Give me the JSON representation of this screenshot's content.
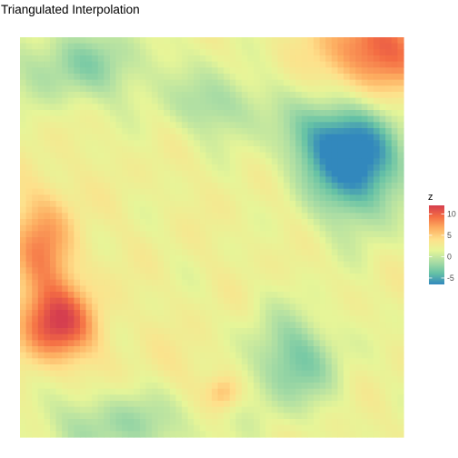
{
  "chart_data": {
    "type": "heatmap",
    "title": "Triangulated Interpolation",
    "xlabel": "",
    "ylabel": "",
    "grid": false,
    "legend": {
      "title": "z",
      "placement": "right",
      "ticks": [
        10,
        5,
        0,
        -5
      ],
      "tick_labels": [
        "10",
        "5",
        "0",
        "-5"
      ],
      "range": [
        -6.5,
        12
      ],
      "colormap": [
        "#3288bd",
        "#66c2a5",
        "#abdda4",
        "#e6f598",
        "#fee08b",
        "#fdae61",
        "#f46d43",
        "#d53e4f"
      ]
    },
    "z_range": [
      -6.5,
      12
    ],
    "features": [
      {
        "name": "low-east",
        "x": 0.88,
        "y": 0.33,
        "z": -6.0,
        "sx": 0.085,
        "sy": 0.1
      },
      {
        "name": "low-east-rim",
        "x": 0.8,
        "y": 0.25,
        "z": -3.0,
        "sx": 0.09,
        "sy": 0.07
      },
      {
        "name": "low-south",
        "x": 0.71,
        "y": 0.81,
        "z": -3.0,
        "sx": 0.085,
        "sy": 0.085
      },
      {
        "name": "low-northwest",
        "x": 0.16,
        "y": 0.07,
        "z": -2.0,
        "sx": 0.14,
        "sy": 0.07
      },
      {
        "name": "low-north-center",
        "x": 0.52,
        "y": 0.17,
        "z": -1.5,
        "sx": 0.09,
        "sy": 0.06
      },
      {
        "name": "low-southwest",
        "x": 0.26,
        "y": 0.97,
        "z": -1.5,
        "sx": 0.15,
        "sy": 0.06
      },
      {
        "name": "high-west",
        "x": 0.1,
        "y": 0.72,
        "z": 11.0,
        "sx": 0.07,
        "sy": 0.065
      },
      {
        "name": "high-west-upper",
        "x": 0.06,
        "y": 0.53,
        "z": 8.0,
        "sx": 0.06,
        "sy": 0.1
      },
      {
        "name": "high-northeast",
        "x": 0.93,
        "y": 0.03,
        "z": 10.0,
        "sx": 0.1,
        "sy": 0.08
      },
      {
        "name": "high-south",
        "x": 0.53,
        "y": 0.89,
        "z": 6.0,
        "sx": 0.03,
        "sy": 0.03
      },
      {
        "name": "high-south-broad",
        "x": 0.45,
        "y": 0.83,
        "z": 3.0,
        "sx": 0.1,
        "sy": 0.06
      }
    ]
  }
}
